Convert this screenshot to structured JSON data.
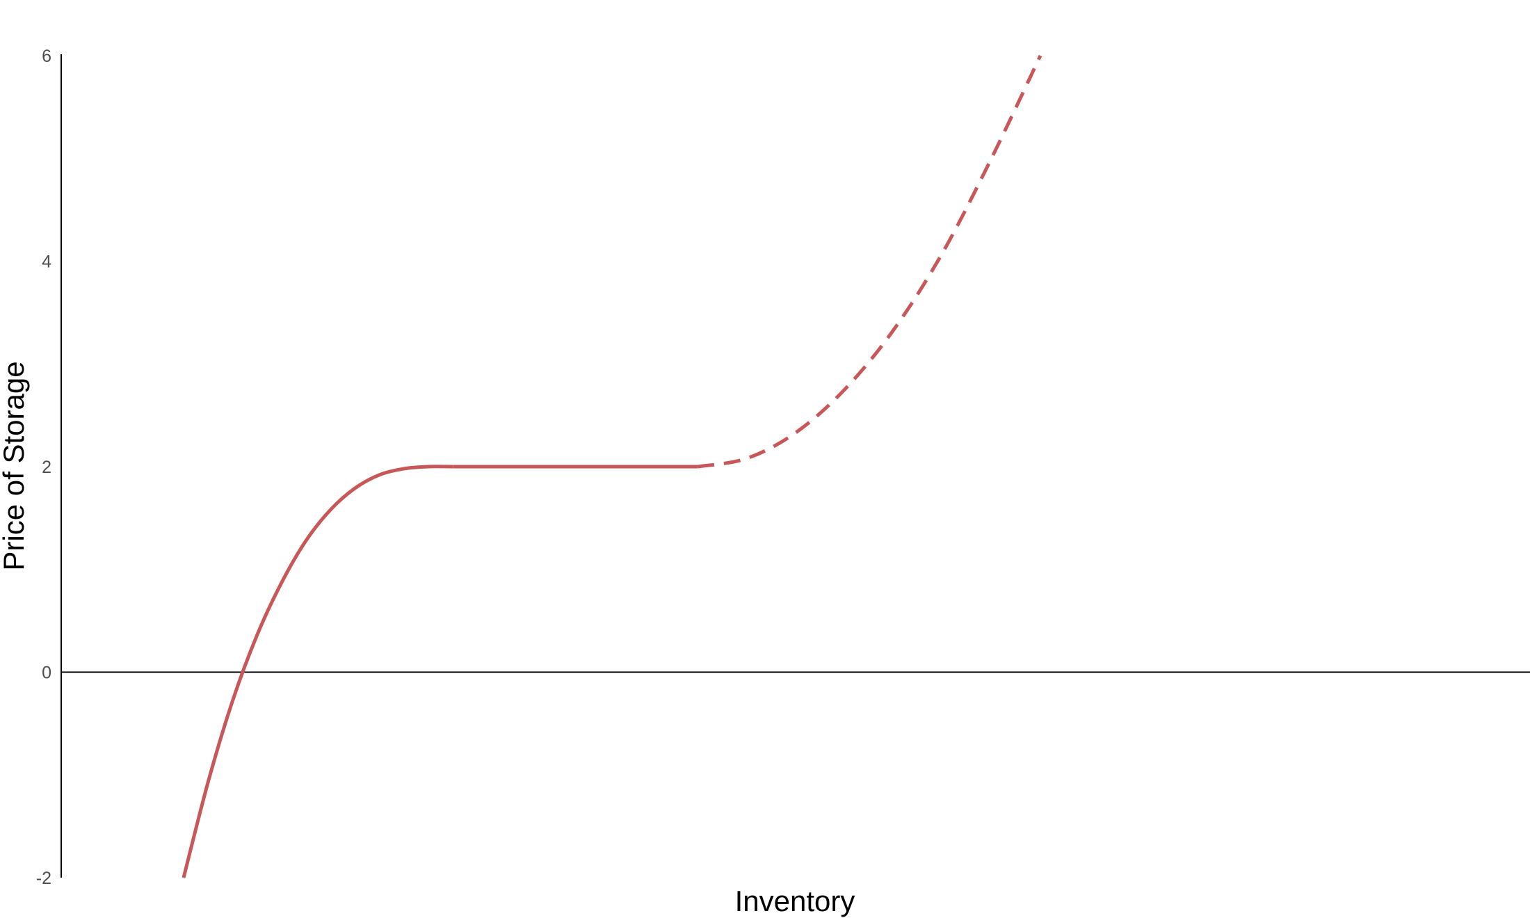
{
  "chart_data": {
    "type": "line",
    "title": "",
    "xlabel": "Inventory",
    "ylabel": "Price of Storage",
    "ylim": [
      -2,
      6
    ],
    "y_ticks": [
      "-2",
      "0",
      "2",
      "4",
      "6"
    ],
    "x_ticks": [],
    "grid": false,
    "legend": "none",
    "reference_lines": [
      {
        "axis": "y",
        "value": 0,
        "color": "#000000"
      }
    ],
    "series": [
      {
        "style": "solid",
        "color": "#c8575a",
        "x": [
          1.25,
          1.5,
          1.75,
          2.0,
          2.25,
          2.5,
          2.75,
          3.0,
          3.25,
          3.5,
          3.75,
          4.0
        ],
        "y": [
          -2.0,
          -1.07,
          -0.28,
          0.36,
          0.87,
          1.28,
          1.58,
          1.79,
          1.92,
          1.98,
          2.0,
          2.0
        ]
      },
      {
        "style": "solid",
        "color": "#c8575a",
        "x": [
          4.0,
          5.0,
          6.0,
          6.5
        ],
        "y": [
          2.0,
          2.0,
          2.0,
          2.0
        ]
      },
      {
        "style": "dashed",
        "color": "#c8575a",
        "x": [
          6.5,
          7.0,
          7.5,
          8.0,
          8.5,
          9.0,
          9.5,
          10.0
        ],
        "y": [
          2.0,
          2.08,
          2.33,
          2.75,
          3.33,
          4.08,
          5.0,
          6.0
        ]
      }
    ]
  }
}
